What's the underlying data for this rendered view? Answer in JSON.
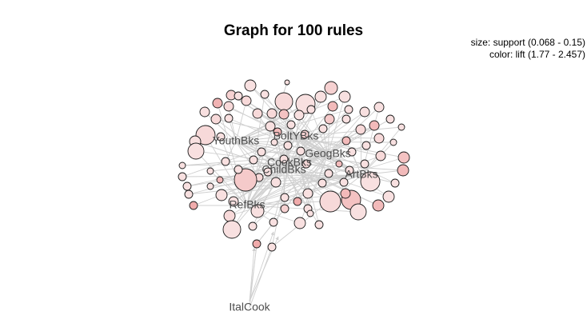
{
  "title": "Graph for 100 rules",
  "legend": {
    "size_text": "size: support (0.068 - 0.15)",
    "color_text": "color: lift (1.77 - 2.457)"
  },
  "colors": {
    "edge": "#cfcfcf",
    "node_stroke": "#1a1a1a",
    "lift_low": "#f9e8e8",
    "lift_high": "#ee9c9c",
    "label": "#4d4d4d"
  },
  "items": [
    {
      "name": "BoltYBks"
    },
    {
      "name": "YouthBks"
    },
    {
      "name": "GeogBks"
    },
    {
      "name": "CookBks"
    },
    {
      "name": "ChildBks"
    },
    {
      "name": "ArtBks"
    },
    {
      "name": "RefBks"
    },
    {
      "name": "ItalCook"
    }
  ]
}
